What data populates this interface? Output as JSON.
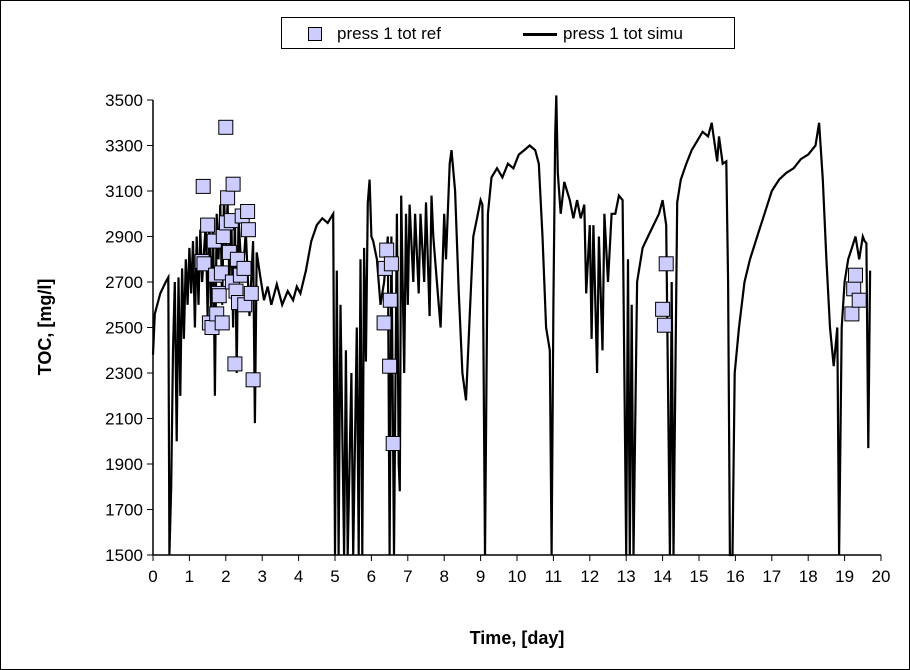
{
  "chart_data": {
    "type": "scatter+line",
    "xlabel": "Time, [day]",
    "ylabel": "TOC, [mg/l]",
    "xlim": [
      0,
      20
    ],
    "ylim": [
      1500,
      3500
    ],
    "x_ticks": [
      "0",
      "1",
      "2",
      "3",
      "4",
      "5",
      "6",
      "7",
      "8",
      "9",
      "10",
      "11",
      "12",
      "13",
      "14",
      "15",
      "16",
      "17",
      "18",
      "19",
      "20"
    ],
    "y_ticks": [
      "1500",
      "1700",
      "1900",
      "2100",
      "2300",
      "2500",
      "2700",
      "2900",
      "3100",
      "3300",
      "3500"
    ],
    "grid": false,
    "legend_position": "top",
    "series": [
      {
        "name": "press 1 tot ref",
        "kind": "scatter",
        "marker": "square",
        "color": "#ccccff",
        "points": [
          [
            1.38,
            3120
          ],
          [
            1.35,
            2790
          ],
          [
            1.4,
            2780
          ],
          [
            1.5,
            2950
          ],
          [
            1.55,
            2520
          ],
          [
            1.62,
            2500
          ],
          [
            1.68,
            2880
          ],
          [
            1.72,
            2730
          ],
          [
            1.75,
            2560
          ],
          [
            1.8,
            2650
          ],
          [
            1.82,
            2640
          ],
          [
            1.88,
            2740
          ],
          [
            1.9,
            2520
          ],
          [
            1.93,
            2900
          ],
          [
            2.0,
            3380
          ],
          [
            2.02,
            2960
          ],
          [
            2.05,
            3070
          ],
          [
            2.1,
            2830
          ],
          [
            2.15,
            2970
          ],
          [
            2.18,
            2700
          ],
          [
            2.2,
            3130
          ],
          [
            2.25,
            2340
          ],
          [
            2.28,
            2660
          ],
          [
            2.32,
            2800
          ],
          [
            2.35,
            2610
          ],
          [
            2.4,
            2730
          ],
          [
            2.45,
            2990
          ],
          [
            2.5,
            2760
          ],
          [
            2.52,
            2600
          ],
          [
            2.6,
            3010
          ],
          [
            2.62,
            2930
          ],
          [
            2.7,
            2650
          ],
          [
            2.75,
            2270
          ],
          [
            6.35,
            2520
          ],
          [
            6.38,
            2760
          ],
          [
            6.42,
            2840
          ],
          [
            6.5,
            2330
          ],
          [
            6.52,
            2620
          ],
          [
            6.55,
            2780
          ],
          [
            6.6,
            1990
          ],
          [
            14.0,
            2580
          ],
          [
            14.05,
            2510
          ],
          [
            14.1,
            2780
          ],
          [
            19.2,
            2560
          ],
          [
            19.25,
            2670
          ],
          [
            19.3,
            2730
          ],
          [
            19.4,
            2620
          ]
        ]
      },
      {
        "name": "press 1 tot simu",
        "kind": "line",
        "color": "#000000",
        "points": [
          [
            0.0,
            2380
          ],
          [
            0.05,
            2560
          ],
          [
            0.2,
            2650
          ],
          [
            0.35,
            2700
          ],
          [
            0.42,
            2720
          ],
          [
            0.45,
            1500
          ],
          [
            0.5,
            1800
          ],
          [
            0.55,
            2400
          ],
          [
            0.6,
            2700
          ],
          [
            0.65,
            2000
          ],
          [
            0.7,
            2720
          ],
          [
            0.75,
            2200
          ],
          [
            0.8,
            2760
          ],
          [
            0.85,
            2450
          ],
          [
            0.9,
            2800
          ],
          [
            0.95,
            2600
          ],
          [
            1.0,
            2850
          ],
          [
            1.05,
            2650
          ],
          [
            1.1,
            2880
          ],
          [
            1.15,
            2500
          ],
          [
            1.2,
            2900
          ],
          [
            1.25,
            2600
          ],
          [
            1.3,
            2930
          ],
          [
            1.35,
            2700
          ],
          [
            1.45,
            2960
          ],
          [
            1.5,
            2550
          ],
          [
            1.55,
            2980
          ],
          [
            1.6,
            2500
          ],
          [
            1.65,
            2970
          ],
          [
            1.7,
            2200
          ],
          [
            1.75,
            3000
          ],
          [
            1.8,
            2800
          ],
          [
            1.85,
            3040
          ],
          [
            1.9,
            2600
          ],
          [
            1.95,
            3080
          ],
          [
            2.0,
            2850
          ],
          [
            2.05,
            3050
          ],
          [
            2.1,
            2700
          ],
          [
            2.15,
            3000
          ],
          [
            2.2,
            2500
          ],
          [
            2.25,
            3000
          ],
          [
            2.3,
            2300
          ],
          [
            2.35,
            2980
          ],
          [
            2.45,
            2700
          ],
          [
            2.55,
            2920
          ],
          [
            2.65,
            2550
          ],
          [
            2.75,
            2880
          ],
          [
            2.8,
            2080
          ],
          [
            2.85,
            2830
          ],
          [
            2.95,
            2720
          ],
          [
            3.05,
            2620
          ],
          [
            3.15,
            2680
          ],
          [
            3.25,
            2600
          ],
          [
            3.4,
            2690
          ],
          [
            3.55,
            2600
          ],
          [
            3.7,
            2660
          ],
          [
            3.85,
            2620
          ],
          [
            3.95,
            2680
          ],
          [
            4.05,
            2650
          ],
          [
            4.2,
            2750
          ],
          [
            4.35,
            2880
          ],
          [
            4.5,
            2950
          ],
          [
            4.65,
            2980
          ],
          [
            4.8,
            2960
          ],
          [
            4.95,
            3000
          ],
          [
            5.0,
            1500
          ],
          [
            5.05,
            2750
          ],
          [
            5.1,
            1500
          ],
          [
            5.15,
            2600
          ],
          [
            5.25,
            1500
          ],
          [
            5.3,
            2400
          ],
          [
            5.35,
            1500
          ],
          [
            5.45,
            2300
          ],
          [
            5.5,
            1500
          ],
          [
            5.6,
            2500
          ],
          [
            5.65,
            1500
          ],
          [
            5.7,
            2800
          ],
          [
            5.75,
            1500
          ],
          [
            5.8,
            2850
          ],
          [
            5.85,
            2350
          ],
          [
            5.9,
            3050
          ],
          [
            5.95,
            3150
          ],
          [
            6.0,
            2900
          ],
          [
            6.05,
            2880
          ],
          [
            6.15,
            2800
          ],
          [
            6.25,
            2600
          ],
          [
            6.35,
            2700
          ],
          [
            6.45,
            2900
          ],
          [
            6.5,
            1500
          ],
          [
            6.55,
            2900
          ],
          [
            6.62,
            1500
          ],
          [
            6.7,
            3000
          ],
          [
            6.75,
            1900
          ],
          [
            6.78,
            1780
          ],
          [
            6.82,
            3080
          ],
          [
            6.9,
            2300
          ],
          [
            6.95,
            3000
          ],
          [
            7.0,
            2600
          ],
          [
            7.05,
            3040
          ],
          [
            7.15,
            2700
          ],
          [
            7.2,
            3000
          ],
          [
            7.3,
            2650
          ],
          [
            7.35,
            3000
          ],
          [
            7.45,
            2700
          ],
          [
            7.5,
            3050
          ],
          [
            7.6,
            2550
          ],
          [
            7.65,
            3080
          ],
          [
            7.7,
            2900
          ],
          [
            7.8,
            2700
          ],
          [
            7.9,
            2500
          ],
          [
            8.0,
            3000
          ],
          [
            8.05,
            2800
          ],
          [
            8.15,
            3220
          ],
          [
            8.2,
            3280
          ],
          [
            8.3,
            3100
          ],
          [
            8.4,
            2650
          ],
          [
            8.5,
            2300
          ],
          [
            8.6,
            2180
          ],
          [
            8.7,
            2550
          ],
          [
            8.8,
            2900
          ],
          [
            8.9,
            2980
          ],
          [
            9.0,
            3060
          ],
          [
            9.05,
            3040
          ],
          [
            9.12,
            1500
          ],
          [
            9.2,
            3000
          ],
          [
            9.3,
            3160
          ],
          [
            9.45,
            3200
          ],
          [
            9.6,
            3160
          ],
          [
            9.75,
            3220
          ],
          [
            9.9,
            3200
          ],
          [
            10.05,
            3260
          ],
          [
            10.2,
            3280
          ],
          [
            10.35,
            3300
          ],
          [
            10.5,
            3280
          ],
          [
            10.6,
            3220
          ],
          [
            10.7,
            2900
          ],
          [
            10.8,
            2500
          ],
          [
            10.9,
            2400
          ],
          [
            10.95,
            1500
          ],
          [
            11.0,
            2600
          ],
          [
            11.05,
            3350
          ],
          [
            11.08,
            3520
          ],
          [
            11.12,
            3180
          ],
          [
            11.2,
            3000
          ],
          [
            11.3,
            3140
          ],
          [
            11.45,
            3060
          ],
          [
            11.55,
            2980
          ],
          [
            11.65,
            3060
          ],
          [
            11.75,
            2980
          ],
          [
            11.85,
            3040
          ],
          [
            11.9,
            2650
          ],
          [
            12.0,
            2950
          ],
          [
            12.05,
            2450
          ],
          [
            12.1,
            2950
          ],
          [
            12.2,
            2300
          ],
          [
            12.25,
            2900
          ],
          [
            12.35,
            2400
          ],
          [
            12.4,
            3000
          ],
          [
            12.5,
            2700
          ],
          [
            12.6,
            3000
          ],
          [
            12.7,
            3000
          ],
          [
            12.8,
            3080
          ],
          [
            12.9,
            3060
          ],
          [
            13.0,
            1500
          ],
          [
            13.05,
            2800
          ],
          [
            13.1,
            1500
          ],
          [
            13.15,
            2600
          ],
          [
            13.2,
            1500
          ],
          [
            13.3,
            2700
          ],
          [
            13.45,
            2850
          ],
          [
            13.6,
            2900
          ],
          [
            13.75,
            2950
          ],
          [
            13.9,
            3000
          ],
          [
            14.0,
            3060
          ],
          [
            14.1,
            2950
          ],
          [
            14.2,
            1500
          ],
          [
            14.25,
            2700
          ],
          [
            14.3,
            1500
          ],
          [
            14.4,
            3050
          ],
          [
            14.5,
            3150
          ],
          [
            14.65,
            3220
          ],
          [
            14.8,
            3280
          ],
          [
            14.95,
            3320
          ],
          [
            15.1,
            3360
          ],
          [
            15.25,
            3340
          ],
          [
            15.35,
            3400
          ],
          [
            15.4,
            3340
          ],
          [
            15.5,
            3230
          ],
          [
            15.55,
            3340
          ],
          [
            15.65,
            3220
          ],
          [
            15.75,
            3230
          ],
          [
            15.8,
            2700
          ],
          [
            15.85,
            1500
          ],
          [
            15.92,
            1500
          ],
          [
            15.98,
            2300
          ],
          [
            16.1,
            2500
          ],
          [
            16.25,
            2700
          ],
          [
            16.4,
            2800
          ],
          [
            16.6,
            2900
          ],
          [
            16.8,
            3000
          ],
          [
            17.0,
            3100
          ],
          [
            17.2,
            3150
          ],
          [
            17.4,
            3180
          ],
          [
            17.6,
            3200
          ],
          [
            17.8,
            3240
          ],
          [
            18.0,
            3260
          ],
          [
            18.2,
            3300
          ],
          [
            18.3,
            3400
          ],
          [
            18.4,
            3150
          ],
          [
            18.5,
            2800
          ],
          [
            18.6,
            2500
          ],
          [
            18.7,
            2330
          ],
          [
            18.8,
            2500
          ],
          [
            18.85,
            1500
          ],
          [
            18.92,
            2500
          ],
          [
            19.0,
            2700
          ],
          [
            19.1,
            2800
          ],
          [
            19.2,
            2850
          ],
          [
            19.3,
            2900
          ],
          [
            19.4,
            2800
          ],
          [
            19.5,
            2900
          ],
          [
            19.55,
            2880
          ],
          [
            19.6,
            2870
          ],
          [
            19.65,
            1970
          ],
          [
            19.7,
            2750
          ]
        ]
      }
    ]
  }
}
